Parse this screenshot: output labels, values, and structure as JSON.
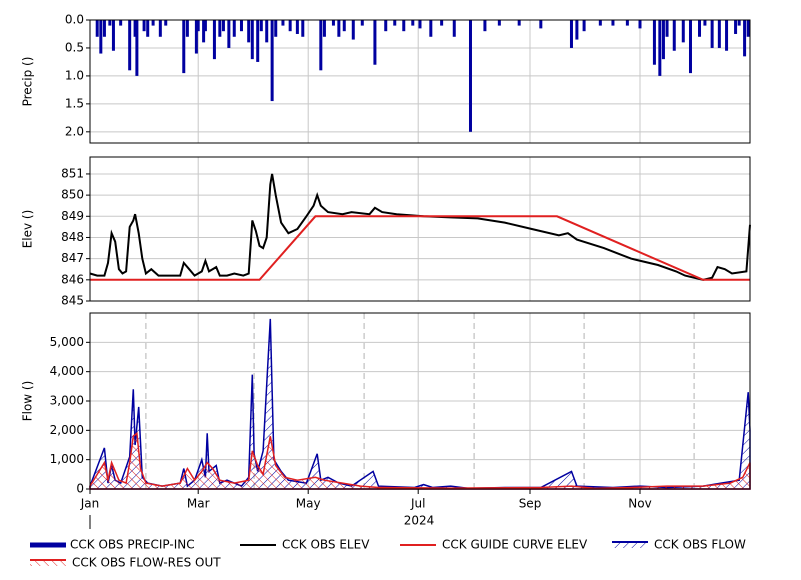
{
  "chart_data": [
    {
      "type": "bar",
      "ylabel": "Precip ()",
      "inverted": true,
      "grid": true,
      "ylim": [
        0,
        2.2
      ],
      "yticks": [
        {
          "value": 0,
          "label": "0.0"
        },
        0.5,
        {
          "value": 1,
          "label": "1.0"
        },
        1.5,
        {
          "value": 2,
          "label": "2.0"
        }
      ],
      "series": [
        {
          "name": "CCK OBS PRECIP-INC",
          "color": "#0000a0",
          "x": [
            4,
            6,
            8,
            11,
            13,
            17,
            22,
            25,
            26,
            30,
            32,
            35,
            39,
            42,
            52,
            54,
            59,
            60,
            63,
            64,
            69,
            72,
            74,
            77,
            80,
            84,
            88,
            90,
            93,
            95,
            98,
            101,
            103,
            107,
            111,
            115,
            118,
            128,
            130,
            135,
            138,
            141,
            146,
            151,
            158,
            164,
            169,
            174,
            179,
            183,
            189,
            195,
            202,
            211,
            219,
            227,
            238,
            250,
            267,
            270,
            274,
            283,
            290,
            298,
            305,
            313,
            316,
            318,
            320,
            324,
            329,
            333,
            338,
            341,
            345,
            349,
            353,
            358,
            360,
            363,
            365
          ],
          "values": [
            0.3,
            0.6,
            0.3,
            0.1,
            0.55,
            0.1,
            0.9,
            0.3,
            1.0,
            0.2,
            0.3,
            0.1,
            0.3,
            0.1,
            0.95,
            0.3,
            0.6,
            0.2,
            0.4,
            0.2,
            0.7,
            0.3,
            0.2,
            0.5,
            0.3,
            0.2,
            0.4,
            0.7,
            0.75,
            0.2,
            0.4,
            1.45,
            0.3,
            0.1,
            0.2,
            0.25,
            0.3,
            0.9,
            0.3,
            0.1,
            0.3,
            0.2,
            0.35,
            0.1,
            0.8,
            0.2,
            0.1,
            0.2,
            0.1,
            0.15,
            0.3,
            0.1,
            0.3,
            2.0,
            0.2,
            0.1,
            0.1,
            0.15,
            0.5,
            0.35,
            0.2,
            0.1,
            0.1,
            0.1,
            0.15,
            0.8,
            1.0,
            0.7,
            0.3,
            0.55,
            0.4,
            0.95,
            0.3,
            0.1,
            0.5,
            0.5,
            0.55,
            0.25,
            0.1,
            0.65,
            0.3
          ]
        }
      ]
    },
    {
      "type": "line",
      "ylabel": "Elev ()",
      "grid": true,
      "ylim": [
        845,
        851.8
      ],
      "yticks": [
        845,
        846,
        847,
        848,
        849,
        850,
        851
      ],
      "series": [
        {
          "name": "CCK OBS ELEV",
          "color": "#000000",
          "x": [
            0,
            4,
            8,
            10,
            12,
            14,
            16,
            18,
            20,
            22,
            24,
            25,
            27,
            29,
            31,
            34,
            38,
            50,
            52,
            55,
            58,
            62,
            64,
            66,
            70,
            72,
            76,
            80,
            85,
            88,
            90,
            92,
            94,
            96,
            98,
            100,
            101,
            103,
            106,
            110,
            115,
            120,
            124,
            126,
            128,
            132,
            140,
            145,
            155,
            158,
            162,
            170,
            185,
            200,
            215,
            230,
            245,
            260,
            265,
            270,
            285,
            300,
            315,
            325,
            330,
            340,
            345,
            348,
            352,
            356,
            364,
            366
          ],
          "values": [
            846.3,
            846.2,
            846.2,
            846.8,
            848.2,
            847.8,
            846.5,
            846.3,
            846.4,
            848.5,
            848.8,
            849.1,
            848.2,
            847.0,
            846.3,
            846.5,
            846.2,
            846.2,
            846.8,
            846.5,
            846.2,
            846.4,
            846.9,
            846.4,
            846.6,
            846.2,
            846.2,
            846.3,
            846.2,
            846.3,
            848.8,
            848.3,
            847.6,
            847.5,
            848.0,
            850.5,
            851.0,
            850.0,
            848.7,
            848.2,
            848.4,
            849.0,
            849.5,
            850.0,
            849.5,
            849.2,
            849.1,
            849.2,
            849.1,
            849.4,
            849.2,
            849.1,
            849.0,
            848.95,
            848.9,
            848.7,
            848.4,
            848.1,
            848.2,
            847.9,
            847.5,
            847.0,
            846.7,
            846.4,
            846.2,
            846.0,
            846.1,
            846.6,
            846.5,
            846.3,
            846.4,
            848.6
          ]
        },
        {
          "name": "CCK GUIDE CURVE ELEV",
          "color": "#e02020",
          "x": [
            0,
            94,
            125,
            259,
            340,
            366
          ],
          "values": [
            846,
            846,
            849,
            849,
            846,
            846
          ]
        }
      ]
    },
    {
      "type": "area",
      "ylabel": "Flow ()",
      "grid": true,
      "xlabel": "2024",
      "xlim": [
        0,
        366
      ],
      "xticks": [
        {
          "value": 0,
          "label": "Jan"
        },
        {
          "value": 60,
          "label": "Mar"
        },
        {
          "value": 121,
          "label": "May"
        },
        {
          "value": 182,
          "label": "Jul"
        },
        {
          "value": 244,
          "label": "Sep"
        },
        {
          "value": 305,
          "label": "Nov"
        }
      ],
      "xminorticks": [
        31,
        91,
        152,
        213,
        274,
        335
      ],
      "ylim": [
        0,
        6000
      ],
      "yticks": [
        0,
        {
          "value": 1000,
          "label": "1,000"
        },
        {
          "value": 2000,
          "label": "2,000"
        },
        {
          "value": 3000,
          "label": "3,000"
        },
        {
          "value": 4000,
          "label": "4,000"
        },
        {
          "value": 5000,
          "label": "5,000"
        }
      ],
      "series": [
        {
          "name": "CCK OBS FLOW",
          "color": "#0000a0",
          "x": [
            0,
            8,
            10,
            12,
            14,
            17,
            22,
            24,
            25,
            27,
            29,
            32,
            40,
            50,
            52,
            54,
            58,
            62,
            64,
            65,
            66,
            70,
            72,
            76,
            80,
            84,
            88,
            90,
            91,
            93,
            96,
            100,
            102,
            106,
            110,
            120,
            126,
            128,
            132,
            138,
            145,
            157,
            160,
            180,
            185,
            190,
            200,
            210,
            230,
            250,
            267,
            270,
            290,
            305,
            320,
            340,
            350,
            360,
            365,
            366
          ],
          "values": [
            100,
            1400,
            200,
            800,
            300,
            200,
            1100,
            3400,
            1500,
            2800,
            400,
            200,
            100,
            200,
            700,
            100,
            300,
            1000,
            400,
            1900,
            600,
            800,
            200,
            300,
            200,
            100,
            400,
            3900,
            1200,
            600,
            1300,
            5800,
            1000,
            600,
            300,
            200,
            1200,
            300,
            400,
            200,
            100,
            600,
            100,
            50,
            150,
            50,
            100,
            20,
            50,
            50,
            600,
            100,
            50,
            100,
            50,
            100,
            200,
            300,
            3300,
            2000
          ]
        },
        {
          "name": "CCK OBS FLOW-RES OUT",
          "color": "#e02020",
          "x": [
            0,
            8,
            10,
            12,
            16,
            20,
            22,
            24,
            26,
            28,
            31,
            40,
            50,
            54,
            58,
            62,
            65,
            68,
            72,
            80,
            88,
            90,
            93,
            96,
            100,
            103,
            108,
            115,
            125,
            130,
            140,
            150,
            160,
            200,
            250,
            267,
            280,
            300,
            320,
            340,
            355,
            362,
            366
          ],
          "values": [
            100,
            900,
            300,
            900,
            300,
            200,
            900,
            1800,
            1900,
            700,
            200,
            100,
            200,
            700,
            300,
            600,
            900,
            700,
            300,
            200,
            300,
            1300,
            800,
            500,
            1800,
            800,
            400,
            300,
            400,
            300,
            200,
            100,
            50,
            30,
            50,
            100,
            20,
            50,
            100,
            100,
            200,
            400,
            900
          ]
        }
      ]
    }
  ]
}
